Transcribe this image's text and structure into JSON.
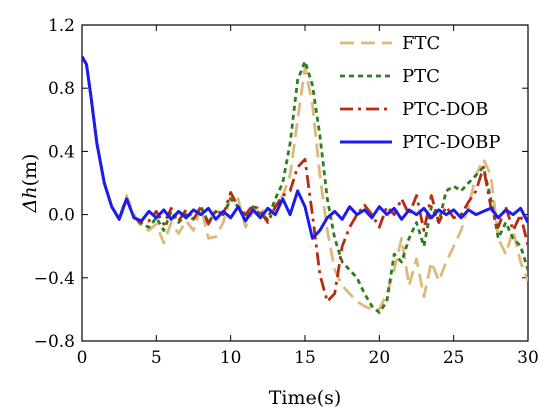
{
  "chart_data": {
    "type": "line",
    "title": "",
    "xlabel": "Time(s)",
    "ylabel_prefix": "Δ",
    "ylabel_var": "h",
    "ylabel_unit": "(m)",
    "xlim": [
      0,
      30
    ],
    "ylim": [
      -0.8,
      1.2
    ],
    "xticks": [
      0,
      5,
      10,
      15,
      20,
      25,
      30
    ],
    "xtick_labels": [
      "0",
      "5",
      "10",
      "15",
      "20",
      "25",
      "30"
    ],
    "yticks": [
      -0.8,
      -0.4,
      0.0,
      0.4,
      0.8,
      1.2
    ],
    "ytick_labels": [
      "−0.8",
      "−0.4",
      "0.0",
      "0.4",
      "0.8",
      "1.2"
    ],
    "grid": false,
    "legend_position": "top-right",
    "series": [
      {
        "name": "FTC",
        "color": "#ddb97a",
        "dash": "14,7",
        "x": [
          0,
          0.3,
          0.6,
          1.0,
          1.5,
          2.0,
          2.5,
          3.0,
          3.5,
          4.0,
          4.5,
          5.0,
          5.5,
          6.0,
          6.5,
          7.0,
          7.5,
          8.0,
          8.5,
          9.0,
          9.5,
          10.0,
          10.5,
          11.0,
          11.5,
          12.0,
          12.5,
          13.0,
          13.5,
          14.0,
          14.5,
          15.0,
          15.5,
          16.0,
          16.5,
          17.0,
          17.5,
          18.0,
          18.5,
          19.0,
          19.5,
          20.0,
          20.5,
          21.0,
          21.5,
          22.0,
          22.5,
          23.0,
          23.5,
          24.0,
          24.5,
          25.0,
          25.5,
          26.0,
          26.5,
          27.0,
          27.5,
          28.0,
          28.5,
          29.0,
          29.5,
          30.0
        ],
        "values": [
          1.0,
          0.95,
          0.75,
          0.45,
          0.2,
          0.05,
          -0.02,
          0.12,
          0.0,
          -0.08,
          -0.1,
          -0.06,
          -0.18,
          -0.05,
          -0.12,
          -0.04,
          -0.1,
          0.05,
          -0.15,
          -0.14,
          -0.05,
          0.12,
          0.1,
          -0.08,
          0.02,
          0.06,
          -0.05,
          0.05,
          0.12,
          0.25,
          0.6,
          0.93,
          0.7,
          0.25,
          -0.1,
          -0.35,
          -0.45,
          -0.5,
          -0.55,
          -0.58,
          -0.6,
          -0.6,
          -0.5,
          -0.35,
          -0.15,
          -0.45,
          -0.28,
          -0.52,
          -0.3,
          -0.42,
          -0.3,
          -0.2,
          -0.1,
          0.05,
          0.25,
          0.35,
          0.25,
          -0.15,
          -0.25,
          -0.1,
          -0.3,
          -0.42
        ]
      },
      {
        "name": "PTC",
        "color": "#2e7d1e",
        "dash": "5,4",
        "x": [
          0,
          0.3,
          0.6,
          1.0,
          1.5,
          2.0,
          2.5,
          3.0,
          3.5,
          4.0,
          4.5,
          5.0,
          5.5,
          6.0,
          6.5,
          7.0,
          7.5,
          8.0,
          8.5,
          9.0,
          9.5,
          10.0,
          10.5,
          11.0,
          11.5,
          12.0,
          12.5,
          13.0,
          13.5,
          14.0,
          14.5,
          15.0,
          15.5,
          16.0,
          16.5,
          17.0,
          17.5,
          18.0,
          18.5,
          19.0,
          19.5,
          20.0,
          20.5,
          21.0,
          21.5,
          22.0,
          22.5,
          23.0,
          23.5,
          24.0,
          24.5,
          25.0,
          25.5,
          26.0,
          26.5,
          27.0,
          27.5,
          28.0,
          28.5,
          29.0,
          29.5,
          30.0
        ],
        "values": [
          1.0,
          0.95,
          0.75,
          0.45,
          0.2,
          0.05,
          -0.03,
          0.1,
          -0.02,
          -0.06,
          -0.08,
          -0.02,
          -0.1,
          0.02,
          -0.05,
          0.0,
          -0.03,
          0.05,
          -0.05,
          0.02,
          0.0,
          0.1,
          0.05,
          -0.02,
          0.05,
          0.0,
          -0.03,
          0.1,
          0.2,
          0.45,
          0.85,
          0.97,
          0.82,
          0.5,
          0.1,
          -0.15,
          -0.3,
          -0.35,
          -0.4,
          -0.5,
          -0.58,
          -0.62,
          -0.55,
          -0.25,
          -0.3,
          -0.15,
          -0.05,
          -0.2,
          0.05,
          -0.05,
          0.15,
          0.18,
          0.15,
          0.2,
          0.25,
          0.3,
          0.1,
          -0.15,
          -0.05,
          -0.15,
          -0.2,
          -0.35
        ]
      },
      {
        "name": "PTC-DOB",
        "color": "#b82b10",
        "dash": "13,5,3,5",
        "x": [
          0,
          0.3,
          0.6,
          1.0,
          1.5,
          2.0,
          2.5,
          3.0,
          3.5,
          4.0,
          4.5,
          5.0,
          5.5,
          6.0,
          6.5,
          7.0,
          7.5,
          8.0,
          8.5,
          9.0,
          9.5,
          10.0,
          10.5,
          11.0,
          11.5,
          12.0,
          12.5,
          13.0,
          13.5,
          14.0,
          14.5,
          15.0,
          15.5,
          16.0,
          16.5,
          17.0,
          17.5,
          18.0,
          18.5,
          19.0,
          19.5,
          20.0,
          20.5,
          21.0,
          21.5,
          22.0,
          22.5,
          23.0,
          23.5,
          24.0,
          24.5,
          25.0,
          25.5,
          26.0,
          26.5,
          27.0,
          27.5,
          28.0,
          28.5,
          29.0,
          29.5,
          30.0
        ],
        "values": [
          1.0,
          0.95,
          0.75,
          0.45,
          0.2,
          0.05,
          -0.03,
          0.1,
          -0.02,
          -0.05,
          -0.04,
          0.02,
          -0.06,
          0.04,
          -0.04,
          0.03,
          -0.03,
          0.05,
          -0.06,
          0.03,
          0.0,
          0.14,
          0.05,
          0.0,
          0.06,
          0.02,
          -0.05,
          0.05,
          0.12,
          0.15,
          0.3,
          0.35,
          0.0,
          -0.38,
          -0.55,
          -0.5,
          -0.2,
          -0.08,
          0.0,
          0.06,
          0.0,
          -0.08,
          0.05,
          0.0,
          0.1,
          0.0,
          0.12,
          -0.1,
          0.12,
          -0.05,
          0.05,
          -0.02,
          0.0,
          0.08,
          0.15,
          0.3,
          0.05,
          -0.08,
          0.05,
          -0.1,
          0.0,
          -0.2
        ]
      },
      {
        "name": "PTC-DOBP",
        "color": "#1c1cf0",
        "dash": "",
        "x": [
          0,
          0.3,
          0.6,
          1.0,
          1.5,
          2.0,
          2.5,
          3.0,
          3.5,
          4.0,
          4.5,
          5.0,
          5.5,
          6.0,
          6.5,
          7.0,
          7.5,
          8.0,
          8.5,
          9.0,
          9.5,
          10.0,
          10.5,
          11.0,
          11.5,
          12.0,
          12.5,
          13.0,
          13.5,
          14.0,
          14.5,
          15.0,
          15.5,
          16.0,
          16.5,
          17.0,
          17.5,
          18.0,
          18.5,
          19.0,
          19.5,
          20.0,
          20.5,
          21.0,
          21.5,
          22.0,
          22.5,
          23.0,
          23.5,
          24.0,
          24.5,
          25.0,
          25.5,
          26.0,
          26.5,
          27.0,
          27.5,
          28.0,
          28.5,
          29.0,
          29.5,
          30.0
        ],
        "values": [
          1.0,
          0.95,
          0.75,
          0.45,
          0.2,
          0.05,
          -0.03,
          0.1,
          -0.02,
          -0.04,
          0.02,
          -0.02,
          0.03,
          -0.03,
          0.02,
          -0.02,
          0.03,
          0.0,
          0.04,
          -0.03,
          0.02,
          -0.02,
          0.05,
          -0.04,
          0.03,
          -0.02,
          0.04,
          0.0,
          0.1,
          0.0,
          0.15,
          0.05,
          -0.15,
          -0.1,
          -0.02,
          0.02,
          -0.03,
          0.05,
          0.0,
          0.03,
          -0.02,
          0.05,
          0.0,
          0.04,
          -0.03,
          0.03,
          0.0,
          0.04,
          -0.02,
          0.03,
          0.0,
          0.03,
          -0.02,
          0.03,
          0.0,
          0.02,
          0.04,
          -0.02,
          0.03,
          0.0,
          0.04,
          -0.05
        ]
      }
    ]
  }
}
